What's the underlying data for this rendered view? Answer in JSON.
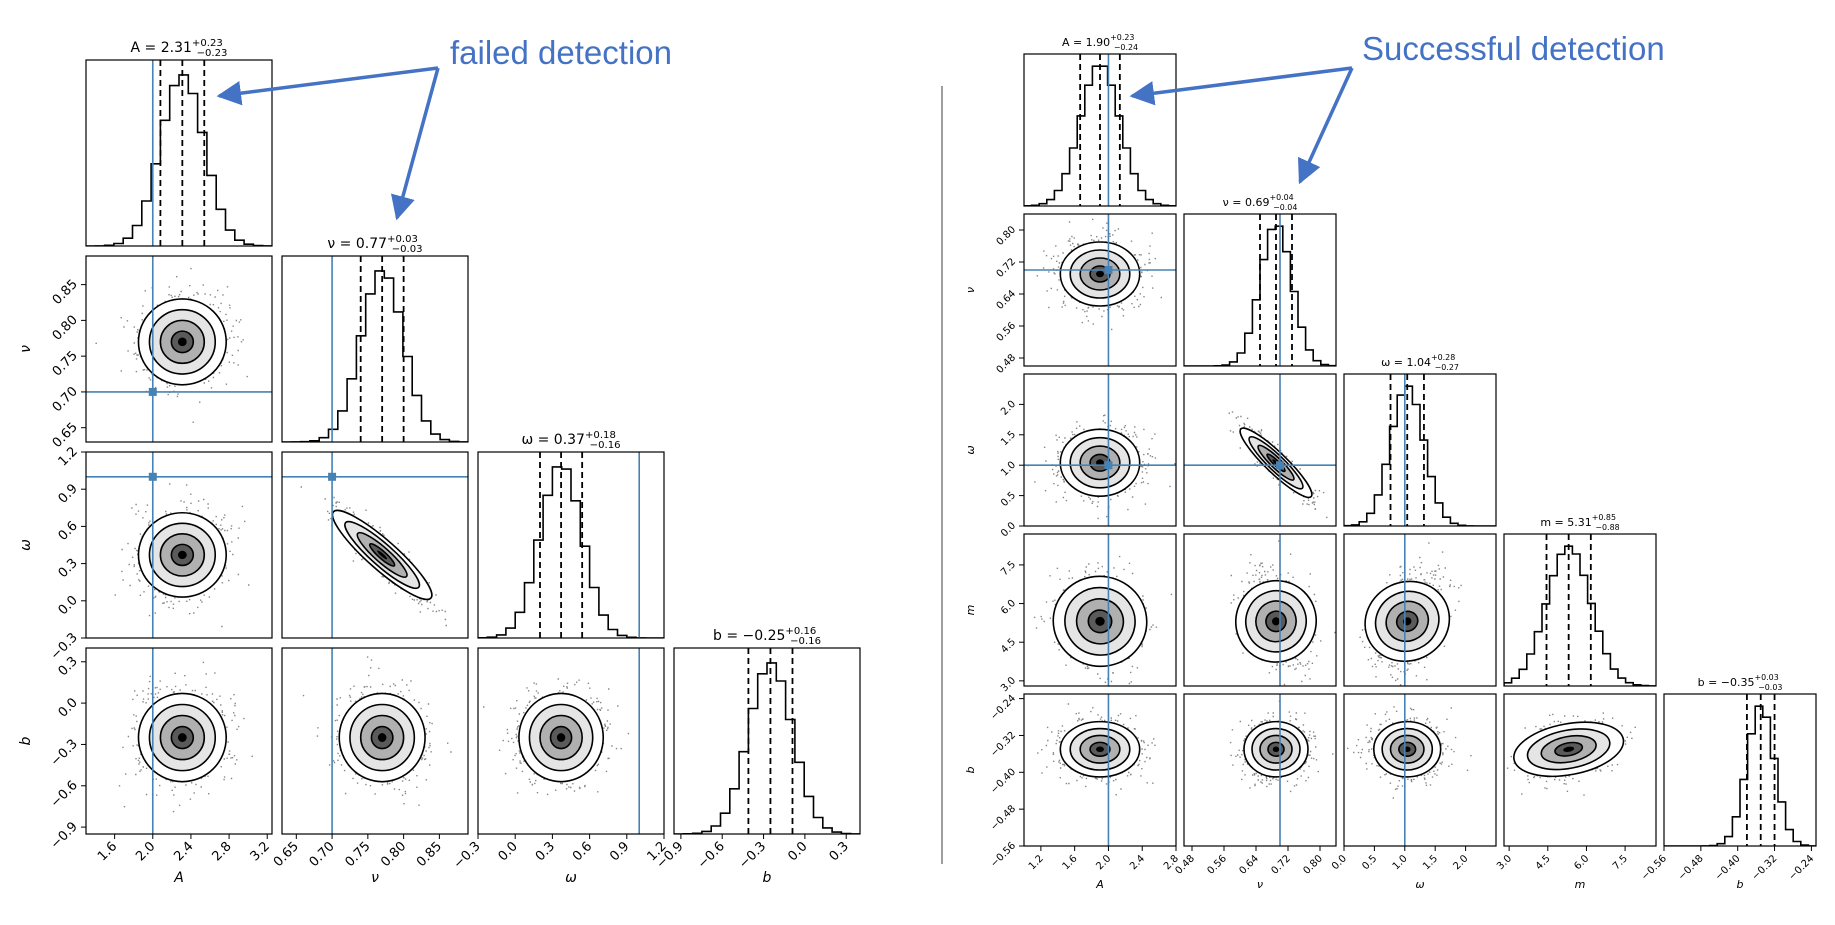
{
  "annotations": {
    "left": "failed detection",
    "right": "Successful detection",
    "color": "#4472c4"
  },
  "truth_color": "#4682b4",
  "chart_data": [
    {
      "type": "corner",
      "name": "failed detection",
      "params": [
        "A",
        "ν",
        "ω",
        "b"
      ],
      "truths": [
        2.0,
        0.7,
        1.0,
        null
      ],
      "titles": [
        {
          "label": "A = 2.31",
          "plus": "+0.23",
          "minus": "−0.23"
        },
        {
          "label": "ν = 0.77",
          "plus": "+0.03",
          "minus": "−0.03"
        },
        {
          "label": "ω = 0.37",
          "plus": "+0.18",
          "minus": "−0.16"
        },
        {
          "label": "b = −0.25",
          "plus": "+0.16",
          "minus": "−0.16"
        }
      ],
      "medians": [
        2.31,
        0.77,
        0.37,
        -0.25
      ],
      "sigmas": [
        0.23,
        0.03,
        0.17,
        0.16
      ],
      "correlations": {
        "1-2": -0.9
      },
      "ranges": [
        [
          1.3,
          3.25
        ],
        [
          0.63,
          0.89
        ],
        [
          -0.3,
          1.2
        ],
        [
          -0.95,
          0.4
        ]
      ],
      "ticks": [
        [
          "1.6",
          "2.0",
          "2.4",
          "2.8",
          "3.2"
        ],
        [
          "0.65",
          "0.70",
          "0.75",
          "0.80",
          "0.85"
        ],
        [
          "−0.3",
          "0.0",
          "0.3",
          "0.6",
          "0.9",
          "1.2"
        ],
        [
          "−0.9",
          "−0.6",
          "−0.3",
          "0.0",
          "0.3"
        ]
      ],
      "tick_values": [
        [
          1.6,
          2.0,
          2.4,
          2.8,
          3.2
        ],
        [
          0.65,
          0.7,
          0.75,
          0.8,
          0.85
        ],
        [
          -0.3,
          0.0,
          0.3,
          0.6,
          0.9,
          1.2
        ],
        [
          -0.9,
          -0.6,
          -0.3,
          0.0,
          0.3
        ]
      ],
      "axis_labels": [
        "A",
        "ν",
        "ω",
        "b"
      ]
    },
    {
      "type": "corner",
      "name": "Successful detection",
      "params": [
        "A",
        "ν",
        "ω",
        "m",
        "b"
      ],
      "truths": [
        2.0,
        0.7,
        1.0,
        null,
        null
      ],
      "titles": [
        {
          "label": "A = 1.90",
          "plus": "+0.23",
          "minus": "−0.24"
        },
        {
          "label": "ν = 0.69",
          "plus": "+0.04",
          "minus": "−0.04"
        },
        {
          "label": "ω = 1.04",
          "plus": "+0.28",
          "minus": "−0.27"
        },
        {
          "label": "m = 5.31",
          "plus": "+0.85",
          "minus": "−0.88"
        },
        {
          "label": "b = −0.35",
          "plus": "+0.03",
          "minus": "−0.03"
        }
      ],
      "medians": [
        1.9,
        0.69,
        1.04,
        5.31,
        -0.35
      ],
      "sigmas": [
        0.235,
        0.04,
        0.275,
        0.86,
        0.03
      ],
      "correlations": {
        "1-2": -0.92,
        "0-3": -0.15,
        "1-3": -0.3,
        "2-3": 0.35,
        "3-4": 0.3
      },
      "ranges": [
        [
          1.0,
          2.8
        ],
        [
          0.46,
          0.84
        ],
        [
          0.0,
          2.5
        ],
        [
          2.8,
          8.7
        ],
        [
          -0.56,
          -0.23
        ]
      ],
      "ticks": [
        [
          "1.2",
          "1.6",
          "2.0",
          "2.4",
          "2.8"
        ],
        [
          "0.48",
          "0.56",
          "0.64",
          "0.72",
          "0.80"
        ],
        [
          "0.0",
          "0.5",
          "1.0",
          "1.5",
          "2.0"
        ],
        [
          "3.0",
          "4.5",
          "6.0",
          "7.5"
        ],
        [
          "−0.56",
          "−0.48",
          "−0.40",
          "−0.32",
          "−0.24"
        ]
      ],
      "tick_values": [
        [
          1.2,
          1.6,
          2.0,
          2.4,
          2.8
        ],
        [
          0.48,
          0.56,
          0.64,
          0.72,
          0.8
        ],
        [
          0.0,
          0.5,
          1.0,
          1.5,
          2.0
        ],
        [
          3.0,
          4.5,
          6.0,
          7.5
        ],
        [
          -0.56,
          -0.48,
          -0.4,
          -0.32,
          -0.24
        ]
      ],
      "axis_labels": [
        "A",
        "ν",
        "ω",
        "m",
        "b"
      ]
    }
  ]
}
